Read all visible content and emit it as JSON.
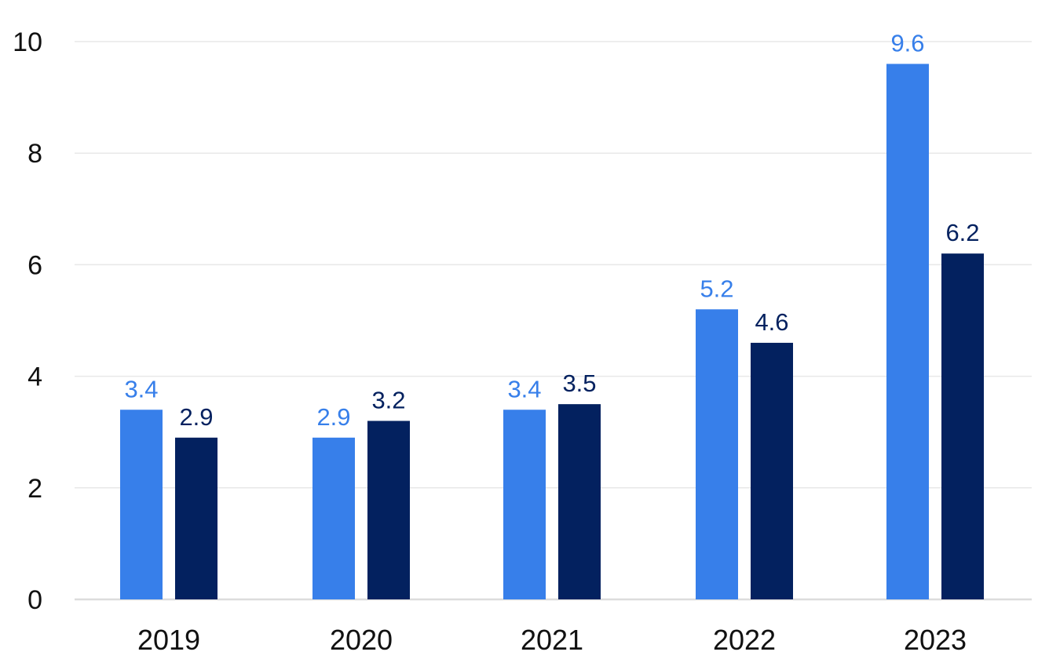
{
  "colors": {
    "series_1": "#377fea",
    "series_2": "#03215f"
  },
  "chart_data": {
    "type": "bar",
    "categories": [
      "2019",
      "2020",
      "2021",
      "2022",
      "2023"
    ],
    "series": [
      {
        "values": [
          3.4,
          2.9,
          3.4,
          5.2,
          9.6
        ]
      },
      {
        "values": [
          2.9,
          3.2,
          3.5,
          4.6,
          6.2
        ]
      }
    ],
    "title": "",
    "xlabel": "",
    "ylabel": "",
    "ylim": [
      0,
      10
    ],
    "yticks": [
      "0",
      "2",
      "4",
      "6",
      "8",
      "10"
    ],
    "grid": true,
    "data_labels": true
  }
}
